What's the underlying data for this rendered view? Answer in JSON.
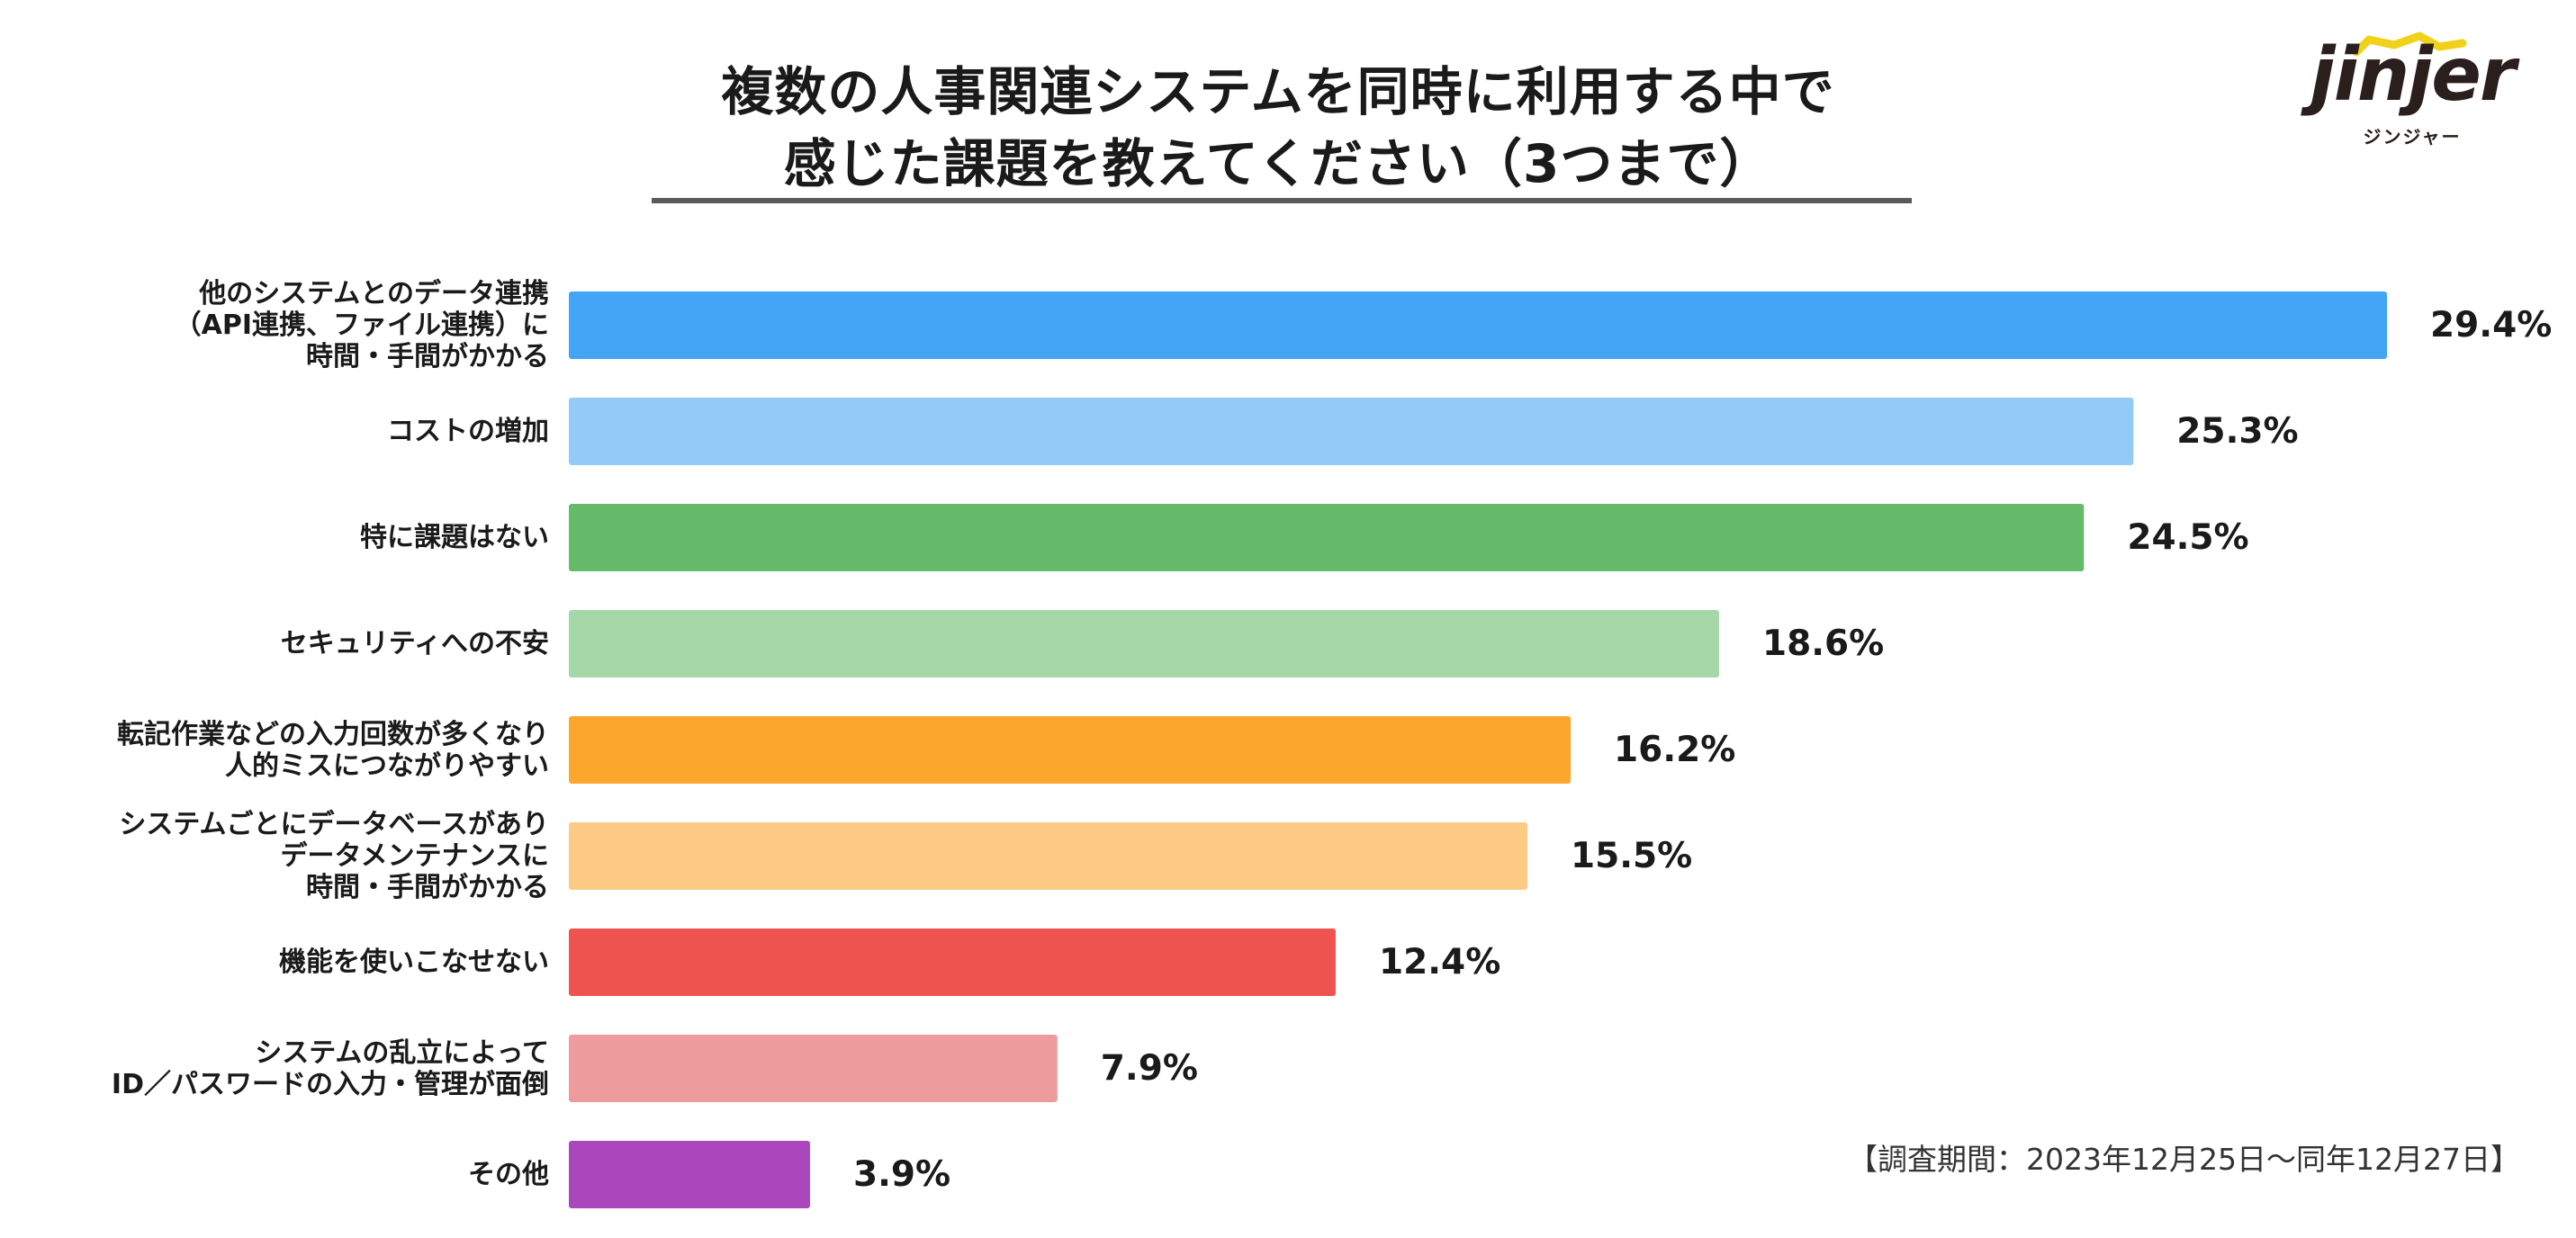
{
  "header": {
    "title_line1": "複数の人事関連システムを同時に利用する中で",
    "title_line2": "感じた課題を教えてください（3つまで）"
  },
  "logo": {
    "wordmark": "jinjer",
    "subtitle": "ジンジャー",
    "accent_color": "#f1d21a"
  },
  "survey_period": "【調査期間：2023年12月25日〜同年12月27日】",
  "chart_data": {
    "type": "bar",
    "orientation": "horizontal",
    "title": "複数の人事関連システムを同時に利用する中で感じた課題を教えてください（3つまで）",
    "xlabel": "",
    "ylabel": "",
    "xlim": [
      0,
      29.4
    ],
    "unit": "%",
    "grid": false,
    "categories": [
      "他のシステムとのデータ連携\n（API連携、ファイル連携）に\n時間・手間がかかる",
      "コストの増加",
      "特に課題はない",
      "セキュリティへの不安",
      "転記作業などの入力回数が多くなり\n人的ミスにつながりやすい",
      "システムごとにデータベースがあり\nデータメンテナンスに\n時間・手間がかかる",
      "機能を使いこなせない",
      "システムの乱立によって\nID／パスワードの入力・管理が面倒",
      "その他"
    ],
    "values": [
      29.4,
      25.3,
      24.5,
      18.6,
      16.2,
      15.5,
      12.4,
      7.9,
      3.9
    ],
    "value_labels": [
      "29.4%",
      "25.3%",
      "24.5%",
      "18.6%",
      "16.2%",
      "15.5%",
      "12.4%",
      "7.9%",
      "3.9%"
    ],
    "colors": [
      "#43a5f5",
      "#92cbf7",
      "#66bb6a",
      "#a6d7a8",
      "#fba72d",
      "#fdca85",
      "#ef5350",
      "#ee9b9d",
      "#ab47bc"
    ]
  }
}
